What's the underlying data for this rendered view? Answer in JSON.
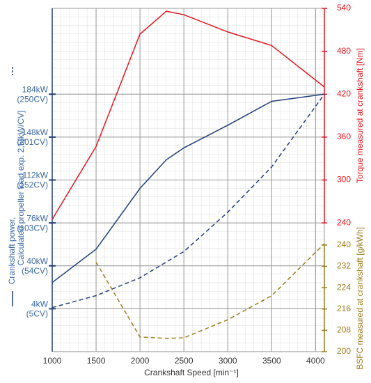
{
  "chart_data": {
    "type": "line",
    "x_label": "Crankshaft Speed [min⁻¹]",
    "xlim": [
      1000,
      4100
    ],
    "xticks": [
      1000,
      1500,
      2000,
      2500,
      3000,
      3500,
      4000
    ],
    "ylim": [
      -32,
      256
    ],
    "yticks": [
      {
        "value": 4,
        "label": "4kW"
      },
      {
        "value": 40,
        "label": "40kW"
      },
      {
        "value": 76,
        "label": "76kW"
      },
      {
        "value": 112,
        "label": "112kW"
      },
      {
        "value": 148,
        "label": "148kW"
      },
      {
        "value": 184,
        "label": "184kW"
      }
    ],
    "ytick_cv_labels": [
      "(5CV)",
      "(54CV)",
      "(103CV)",
      "(152CV)",
      "(201CV)",
      "(250CV)"
    ],
    "y2lim": [
      60,
      540
    ],
    "y2ticks": [
      240,
      300,
      360,
      420,
      480,
      540
    ],
    "y2_label": "Torque measured at crankshaft [Nm]",
    "y2_color": "#e8141c",
    "y3lim": [
      200,
      328.75
    ],
    "y3ticks": [
      200,
      208,
      216,
      224,
      232,
      240
    ],
    "y3_label": "BSFC measured at crankshaft [g/kWh]",
    "y3_color": "#9c7c1c",
    "grid": true,
    "series": [
      {
        "name": "Crankshaft power,",
        "color": "#1f3f7a",
        "axis": "y",
        "dashed": false,
        "x": [
          1000,
          1500,
          2000,
          2300,
          2500,
          3000,
          3500,
          4100
        ],
        "values": [
          26,
          54,
          105,
          129,
          139,
          158,
          178,
          184
        ]
      },
      {
        "name": "Calculated propeller load exp. 2,5[kW/CV]",
        "color": "#1f3f7a",
        "axis": "y",
        "dashed": true,
        "x": [
          1000,
          1500,
          2000,
          2500,
          3000,
          3500,
          4100
        ],
        "values": [
          5,
          15,
          30,
          52,
          85,
          123,
          184
        ]
      },
      {
        "name": "Torque",
        "color": "#e8141c",
        "axis": "y2",
        "dashed": false,
        "x": [
          1000,
          1500,
          2000,
          2300,
          2500,
          3000,
          3500,
          4100
        ],
        "values": [
          245,
          347,
          504,
          536,
          531,
          507,
          488,
          430
        ]
      },
      {
        "name": "BSFC",
        "color": "#9c7c1c",
        "axis": "y3",
        "dashed": true,
        "x": [
          1500,
          2000,
          2300,
          2500,
          3000,
          3500,
          4100
        ],
        "values": [
          233.5,
          205.5,
          205,
          205.2,
          212,
          221,
          240.5
        ]
      }
    ]
  }
}
